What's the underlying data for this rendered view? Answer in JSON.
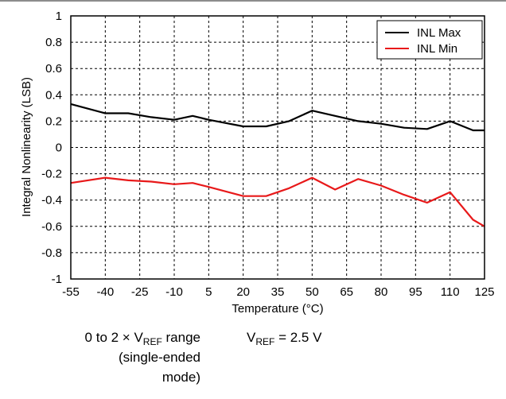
{
  "chart_data": {
    "type": "line",
    "xlabel": "Temperature (°C)",
    "ylabel": "Integral Nonlinearity (LSB)",
    "x_ticks": [
      "-55",
      "-40",
      "-25",
      "-10",
      "5",
      "20",
      "35",
      "50",
      "65",
      "80",
      "95",
      "110",
      "125"
    ],
    "y_ticks": [
      "1",
      "0.8",
      "0.6",
      "0.4",
      "0.2",
      "0",
      "-0.2",
      "-0.4",
      "-0.6",
      "-0.8",
      "-1"
    ],
    "xlim": [
      -55,
      125
    ],
    "ylim": [
      -1,
      1
    ],
    "grid": true,
    "legend_position": "top-right",
    "series": [
      {
        "name": "INL Max",
        "color": "#000000",
        "x": [
          -55,
          -40,
          -30,
          -20,
          -10,
          -2,
          5,
          20,
          30,
          40,
          50,
          60,
          70,
          80,
          90,
          100,
          110,
          120,
          125
        ],
        "y": [
          0.33,
          0.26,
          0.26,
          0.23,
          0.21,
          0.24,
          0.21,
          0.16,
          0.16,
          0.2,
          0.28,
          0.24,
          0.2,
          0.18,
          0.15,
          0.14,
          0.2,
          0.13,
          0.13
        ]
      },
      {
        "name": "INL Min",
        "color": "#e8191a",
        "x": [
          -55,
          -40,
          -30,
          -20,
          -10,
          -2,
          5,
          20,
          30,
          40,
          50,
          60,
          70,
          80,
          90,
          100,
          110,
          120,
          125
        ],
        "y": [
          -0.27,
          -0.23,
          -0.25,
          -0.26,
          -0.28,
          -0.27,
          -0.3,
          -0.37,
          -0.37,
          -0.31,
          -0.23,
          -0.32,
          -0.24,
          -0.29,
          -0.36,
          -0.42,
          -0.34,
          -0.55,
          -0.6
        ]
      }
    ]
  },
  "notes": {
    "left_line1_prefix": "0 to 2 × V",
    "left_line1_sub": "REF",
    "left_line1_suffix": " range",
    "left_line2": "(single-ended",
    "left_line3": "mode)",
    "right_prefix": "V",
    "right_sub": "REF",
    "right_suffix": " = 2.5 V"
  }
}
